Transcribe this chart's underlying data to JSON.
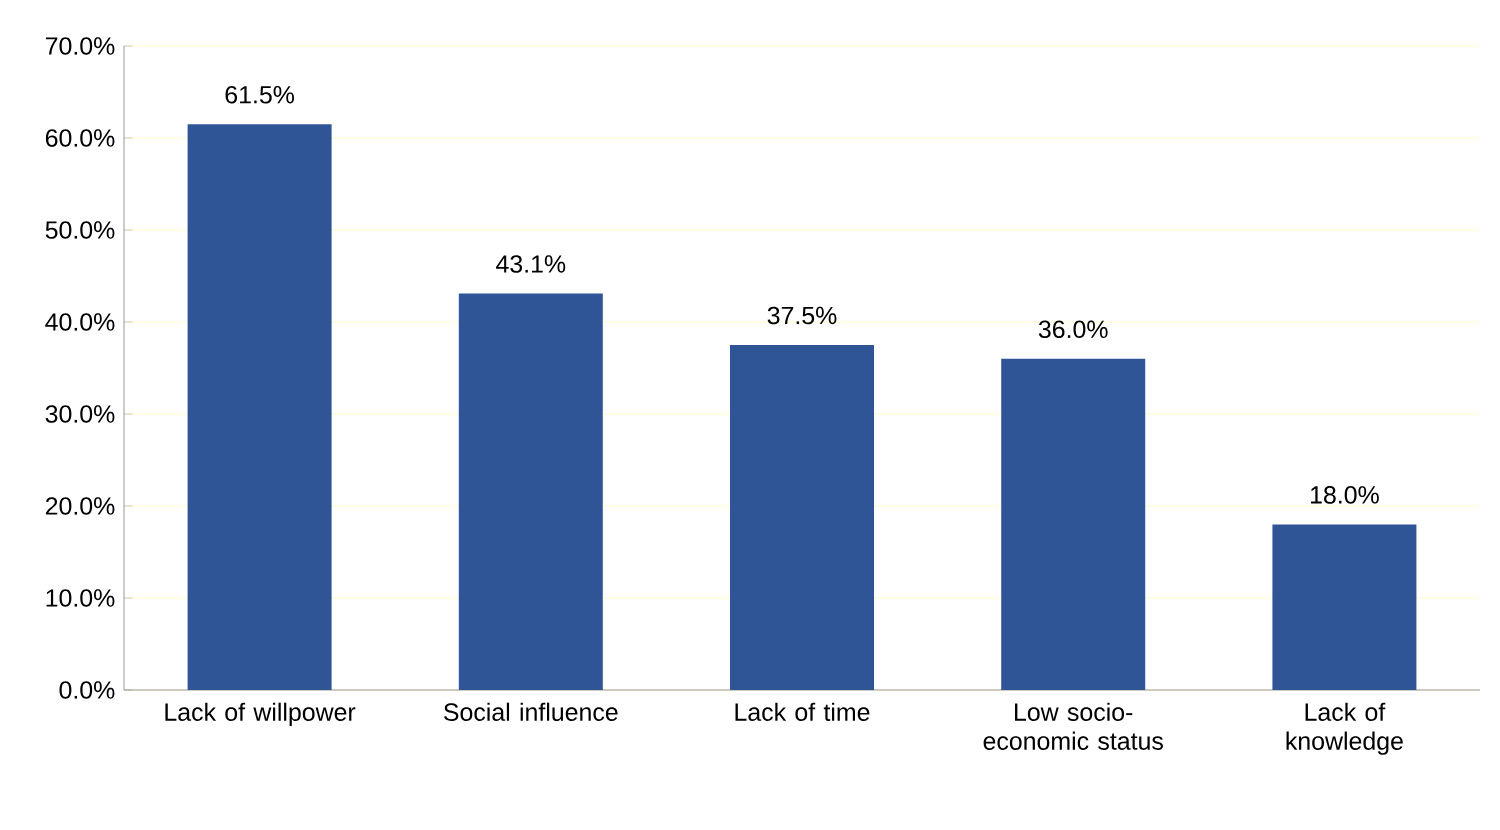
{
  "chart_data": {
    "type": "bar",
    "categories": [
      "Lack of willpower",
      "Social influence",
      "Lack of time",
      "Low socio-economic status",
      "Lack of knowledge"
    ],
    "values": [
      61.5,
      43.1,
      37.5,
      36.0,
      18.0
    ],
    "value_labels": [
      "61.5%",
      "43.1%",
      "37.5%",
      "36.0%",
      "18.0%"
    ],
    "color": "#2f5597",
    "ylim": [
      0,
      70
    ],
    "yticks": [
      {
        "value": 0,
        "label": "0.0%"
      },
      {
        "value": 10,
        "label": "10.0%"
      },
      {
        "value": 20,
        "label": "20.0%"
      },
      {
        "value": 30,
        "label": "30.0%"
      },
      {
        "value": 40,
        "label": "40.0%"
      },
      {
        "value": 50,
        "label": "50.0%"
      },
      {
        "value": 60,
        "label": "60.0%"
      },
      {
        "value": 70,
        "label": "70.0%"
      }
    ],
    "grid": "y"
  }
}
